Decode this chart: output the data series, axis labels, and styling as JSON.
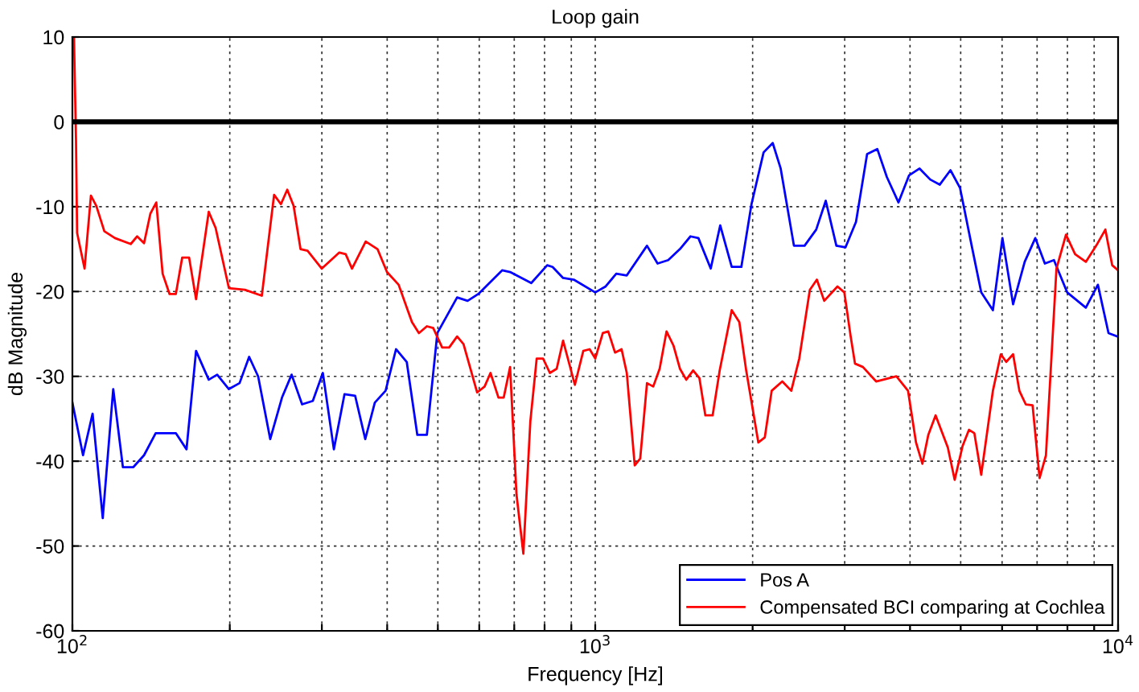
{
  "chart_data": {
    "type": "line",
    "title": "Loop gain",
    "xlabel": "Frequency [Hz]",
    "ylabel": "dB Magnitude",
    "log": "x",
    "grid": true,
    "legend": "bottom right",
    "line_style": "solid",
    "marker": "none",
    "xlim": [
      100,
      10000
    ],
    "xticks": [
      {
        "value": 100,
        "label": "10$^{2}$"
      },
      {
        "value": 200,
        "label": null
      },
      {
        "value": 300,
        "label": null
      },
      {
        "value": 400,
        "label": null
      },
      {
        "value": 500,
        "label": null
      },
      {
        "value": 600,
        "label": null
      },
      {
        "value": 700,
        "label": null
      },
      {
        "value": 800,
        "label": null
      },
      {
        "value": 900,
        "label": null
      },
      {
        "value": 1000,
        "label": "10$^{3}$"
      },
      {
        "value": 2000,
        "label": null
      },
      {
        "value": 3000,
        "label": null
      },
      {
        "value": 4000,
        "label": null
      },
      {
        "value": 5000,
        "label": null
      },
      {
        "value": 6000,
        "label": null
      },
      {
        "value": 7000,
        "label": null
      },
      {
        "value": 8000,
        "label": null
      },
      {
        "value": 9000,
        "label": null
      },
      {
        "value": 10000,
        "label": "10$^{4}$"
      }
    ],
    "ylim": [
      -60,
      10
    ],
    "yticks": [
      -60,
      -50,
      -40,
      -30,
      -20,
      -10,
      0,
      10
    ],
    "ref_lines": [
      {
        "axis": "y",
        "value": 0,
        "color": "#000000",
        "line_style": "solid"
      }
    ],
    "series": [
      {
        "name": "Pos A",
        "color": "#0000ff",
        "x": [
          100,
          104.8,
          109.3,
          114.3,
          119.7,
          124.9,
          130.8,
          137.1,
          144.3,
          157.7,
          165.3,
          172.4,
          182.3,
          189.2,
          199.2,
          208.8,
          217.8,
          226.6,
          239,
          251.7,
          262.6,
          275,
          288.3,
          301.3,
          316.3,
          331.5,
          347.4,
          363.2,
          378.8,
          397.2,
          415.9,
          436,
          456.8,
          476.4,
          498.9,
          544.3,
          570,
          597.4,
          663.6,
          687.3,
          754.5,
          809.3,
          828.7,
          868,
          909.8,
          1000,
          1047,
          1097,
          1149,
          1256,
          1316,
          1379,
          1452,
          1521,
          1575,
          1663,
          1734,
          1824,
          1903,
          1990,
          2099,
          2185,
          2263,
          2399,
          2514,
          2646,
          2760,
          2892,
          3010,
          3153,
          3311,
          3463,
          3612,
          3802,
          3984,
          4172,
          4373,
          4561,
          4780,
          4986,
          5248,
          5473,
          5762,
          6009,
          6298,
          6628,
          6945,
          7244,
          7539,
          7991,
          8676,
          9149,
          9588,
          9977
        ],
        "values": [
          -33.1,
          -39.3,
          -34.4,
          -46.7,
          -31.5,
          -40.7,
          -40.7,
          -39.3,
          -36.7,
          -36.7,
          -38.6,
          -27.0,
          -30.4,
          -29.8,
          -31.5,
          -30.8,
          -27.7,
          -30.0,
          -37.4,
          -32.5,
          -29.8,
          -33.3,
          -32.9,
          -29.6,
          -38.6,
          -32.1,
          -32.3,
          -37.4,
          -33.1,
          -31.7,
          -26.8,
          -28.3,
          -36.9,
          -36.9,
          -24.9,
          -20.7,
          -21.1,
          -20.3,
          -17.5,
          -17.7,
          -19.0,
          -16.9,
          -17.1,
          -18.4,
          -18.6,
          -20.1,
          -19.4,
          -17.9,
          -18.1,
          -14.6,
          -16.7,
          -16.3,
          -15.0,
          -13.5,
          -13.7,
          -17.3,
          -12.2,
          -17.1,
          -17.1,
          -9.7,
          -3.6,
          -2.5,
          -5.5,
          -14.6,
          -14.6,
          -12.7,
          -9.3,
          -14.6,
          -14.8,
          -11.8,
          -3.8,
          -3.2,
          -6.5,
          -9.5,
          -6.3,
          -5.5,
          -6.8,
          -7.4,
          -5.7,
          -7.8,
          -14.6,
          -20.1,
          -22.2,
          -13.7,
          -21.5,
          -16.5,
          -13.7,
          -16.7,
          -16.3,
          -20.1,
          -21.9,
          -19.2,
          -24.9,
          -25.3
        ]
      },
      {
        "name": "Compensated BCI comparing at Cochlea",
        "color": "#ff0000",
        "x": [
          100.7,
          101.6,
          102.1,
          105.5,
          108.5,
          111.1,
          115.1,
          120.6,
          129.3,
          133,
          137.1,
          141,
          144.7,
          148.8,
          153.4,
          157.7,
          162.2,
          167.2,
          172.4,
          182.3,
          187.9,
          199.2,
          213.7,
          230.3,
          243.1,
          250.5,
          257.6,
          264.9,
          273.1,
          281.7,
          299.9,
          324,
          333.2,
          342.6,
          363.9,
          383.3,
          399.6,
          420.7,
          446.1,
          460,
          476.4,
          489.9,
          509.6,
          525.5,
          544.3,
          559.8,
          594.4,
          614.3,
          630.5,
          653,
          668.3,
          687.3,
          706.9,
          728.6,
          751.4,
          772.7,
          794.7,
          818.9,
          843.9,
          868,
          914.2,
          948.7,
          975.6,
          1000,
          1034,
          1059,
          1091,
          1123,
          1149,
          1190,
          1219,
          1256,
          1291,
          1328,
          1369,
          1412,
          1452,
          1493,
          1539,
          1582,
          1624,
          1677,
          1730,
          1824,
          1886,
          1944,
          2051,
          2110,
          2175,
          2279,
          2371,
          2456,
          2573,
          2654,
          2741,
          2906,
          2995,
          3080,
          3139,
          3251,
          3445,
          3767,
          3965,
          4107,
          4224,
          4335,
          4477,
          4725,
          4869,
          5042,
          5185,
          5310,
          5473,
          5762,
          5966,
          6110,
          6298,
          6474,
          6659,
          6862,
          7077,
          7278,
          7623,
          7950,
          8275,
          8676,
          9081,
          9454,
          9743,
          10000
        ],
        "values": [
          10,
          -2.1,
          -13.1,
          -17.3,
          -8.7,
          -9.9,
          -12.9,
          -13.7,
          -14.4,
          -13.5,
          -14.3,
          -10.8,
          -9.5,
          -17.9,
          -20.3,
          -20.3,
          -16.0,
          -16.0,
          -20.9,
          -10.6,
          -12.5,
          -19.6,
          -19.8,
          -20.5,
          -8.6,
          -9.7,
          -8.0,
          -9.9,
          -15.0,
          -15.2,
          -17.3,
          -15.4,
          -15.6,
          -17.3,
          -14.1,
          -15.0,
          -17.7,
          -19.2,
          -23.6,
          -24.9,
          -24.1,
          -24.3,
          -26.6,
          -26.6,
          -25.3,
          -26.2,
          -31.9,
          -31.2,
          -29.6,
          -32.5,
          -32.5,
          -28.9,
          -43.9,
          -50.9,
          -35.3,
          -27.9,
          -27.9,
          -29.6,
          -29.1,
          -25.8,
          -31.0,
          -27.0,
          -26.8,
          -27.9,
          -24.9,
          -24.7,
          -27.2,
          -26.8,
          -29.6,
          -40.5,
          -39.7,
          -30.8,
          -31.2,
          -29.1,
          -24.7,
          -26.4,
          -29.1,
          -30.4,
          -29.3,
          -30.2,
          -34.6,
          -34.6,
          -29.3,
          -22.2,
          -23.6,
          -29.3,
          -37.8,
          -37.2,
          -31.7,
          -30.6,
          -31.7,
          -27.9,
          -19.8,
          -18.6,
          -21.1,
          -19.4,
          -20.1,
          -25.3,
          -28.5,
          -28.9,
          -30.6,
          -30.0,
          -31.7,
          -37.8,
          -40.3,
          -36.9,
          -34.6,
          -38.4,
          -42.2,
          -38.2,
          -36.3,
          -36.7,
          -41.6,
          -31.7,
          -27.4,
          -28.3,
          -27.4,
          -31.7,
          -33.3,
          -33.4,
          -42.0,
          -39.3,
          -17.3,
          -13.3,
          -15.6,
          -16.5,
          -14.6,
          -12.7,
          -16.9,
          -17.5
        ]
      }
    ]
  }
}
